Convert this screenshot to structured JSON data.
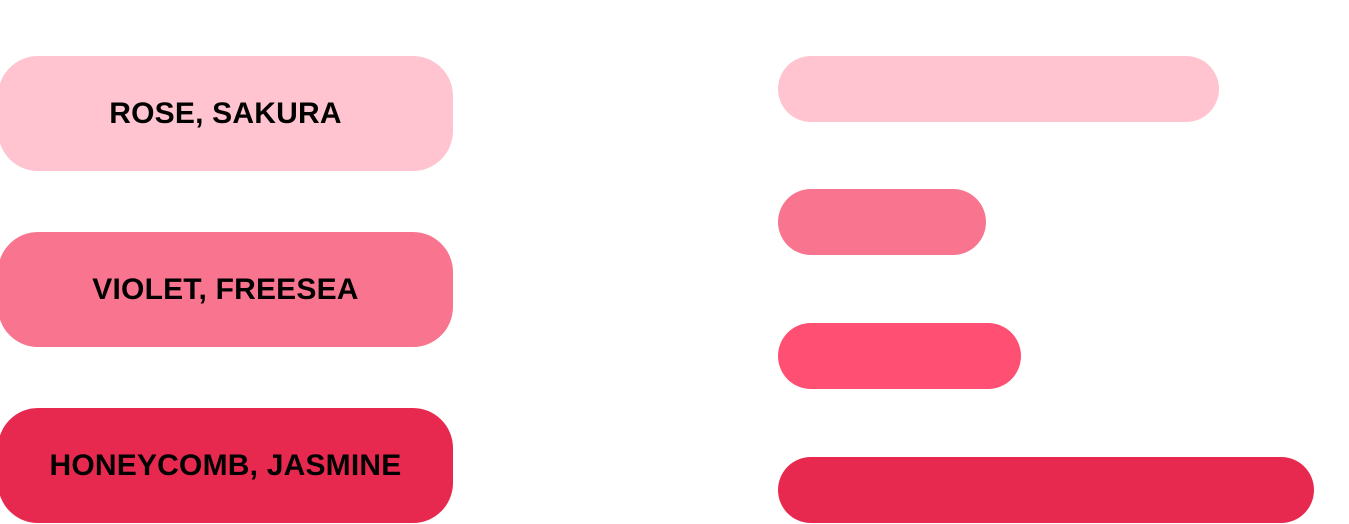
{
  "legend": [
    {
      "label": "ROSE, SAKURA",
      "color": "#FFC4D0"
    },
    {
      "label": "VIOLET, FREESEA",
      "color": "#F8748F"
    },
    {
      "label": "HONEYCOMB, JASMINE",
      "color": "#E8294F"
    }
  ],
  "chart_data": {
    "type": "bar",
    "orientation": "horizontal",
    "grid": false,
    "axes_visible": false,
    "values": [
      441,
      208,
      243,
      536
    ],
    "colors": [
      "#FFC4D0",
      "#F8748F",
      "#FF4F72",
      "#E8294F"
    ]
  }
}
